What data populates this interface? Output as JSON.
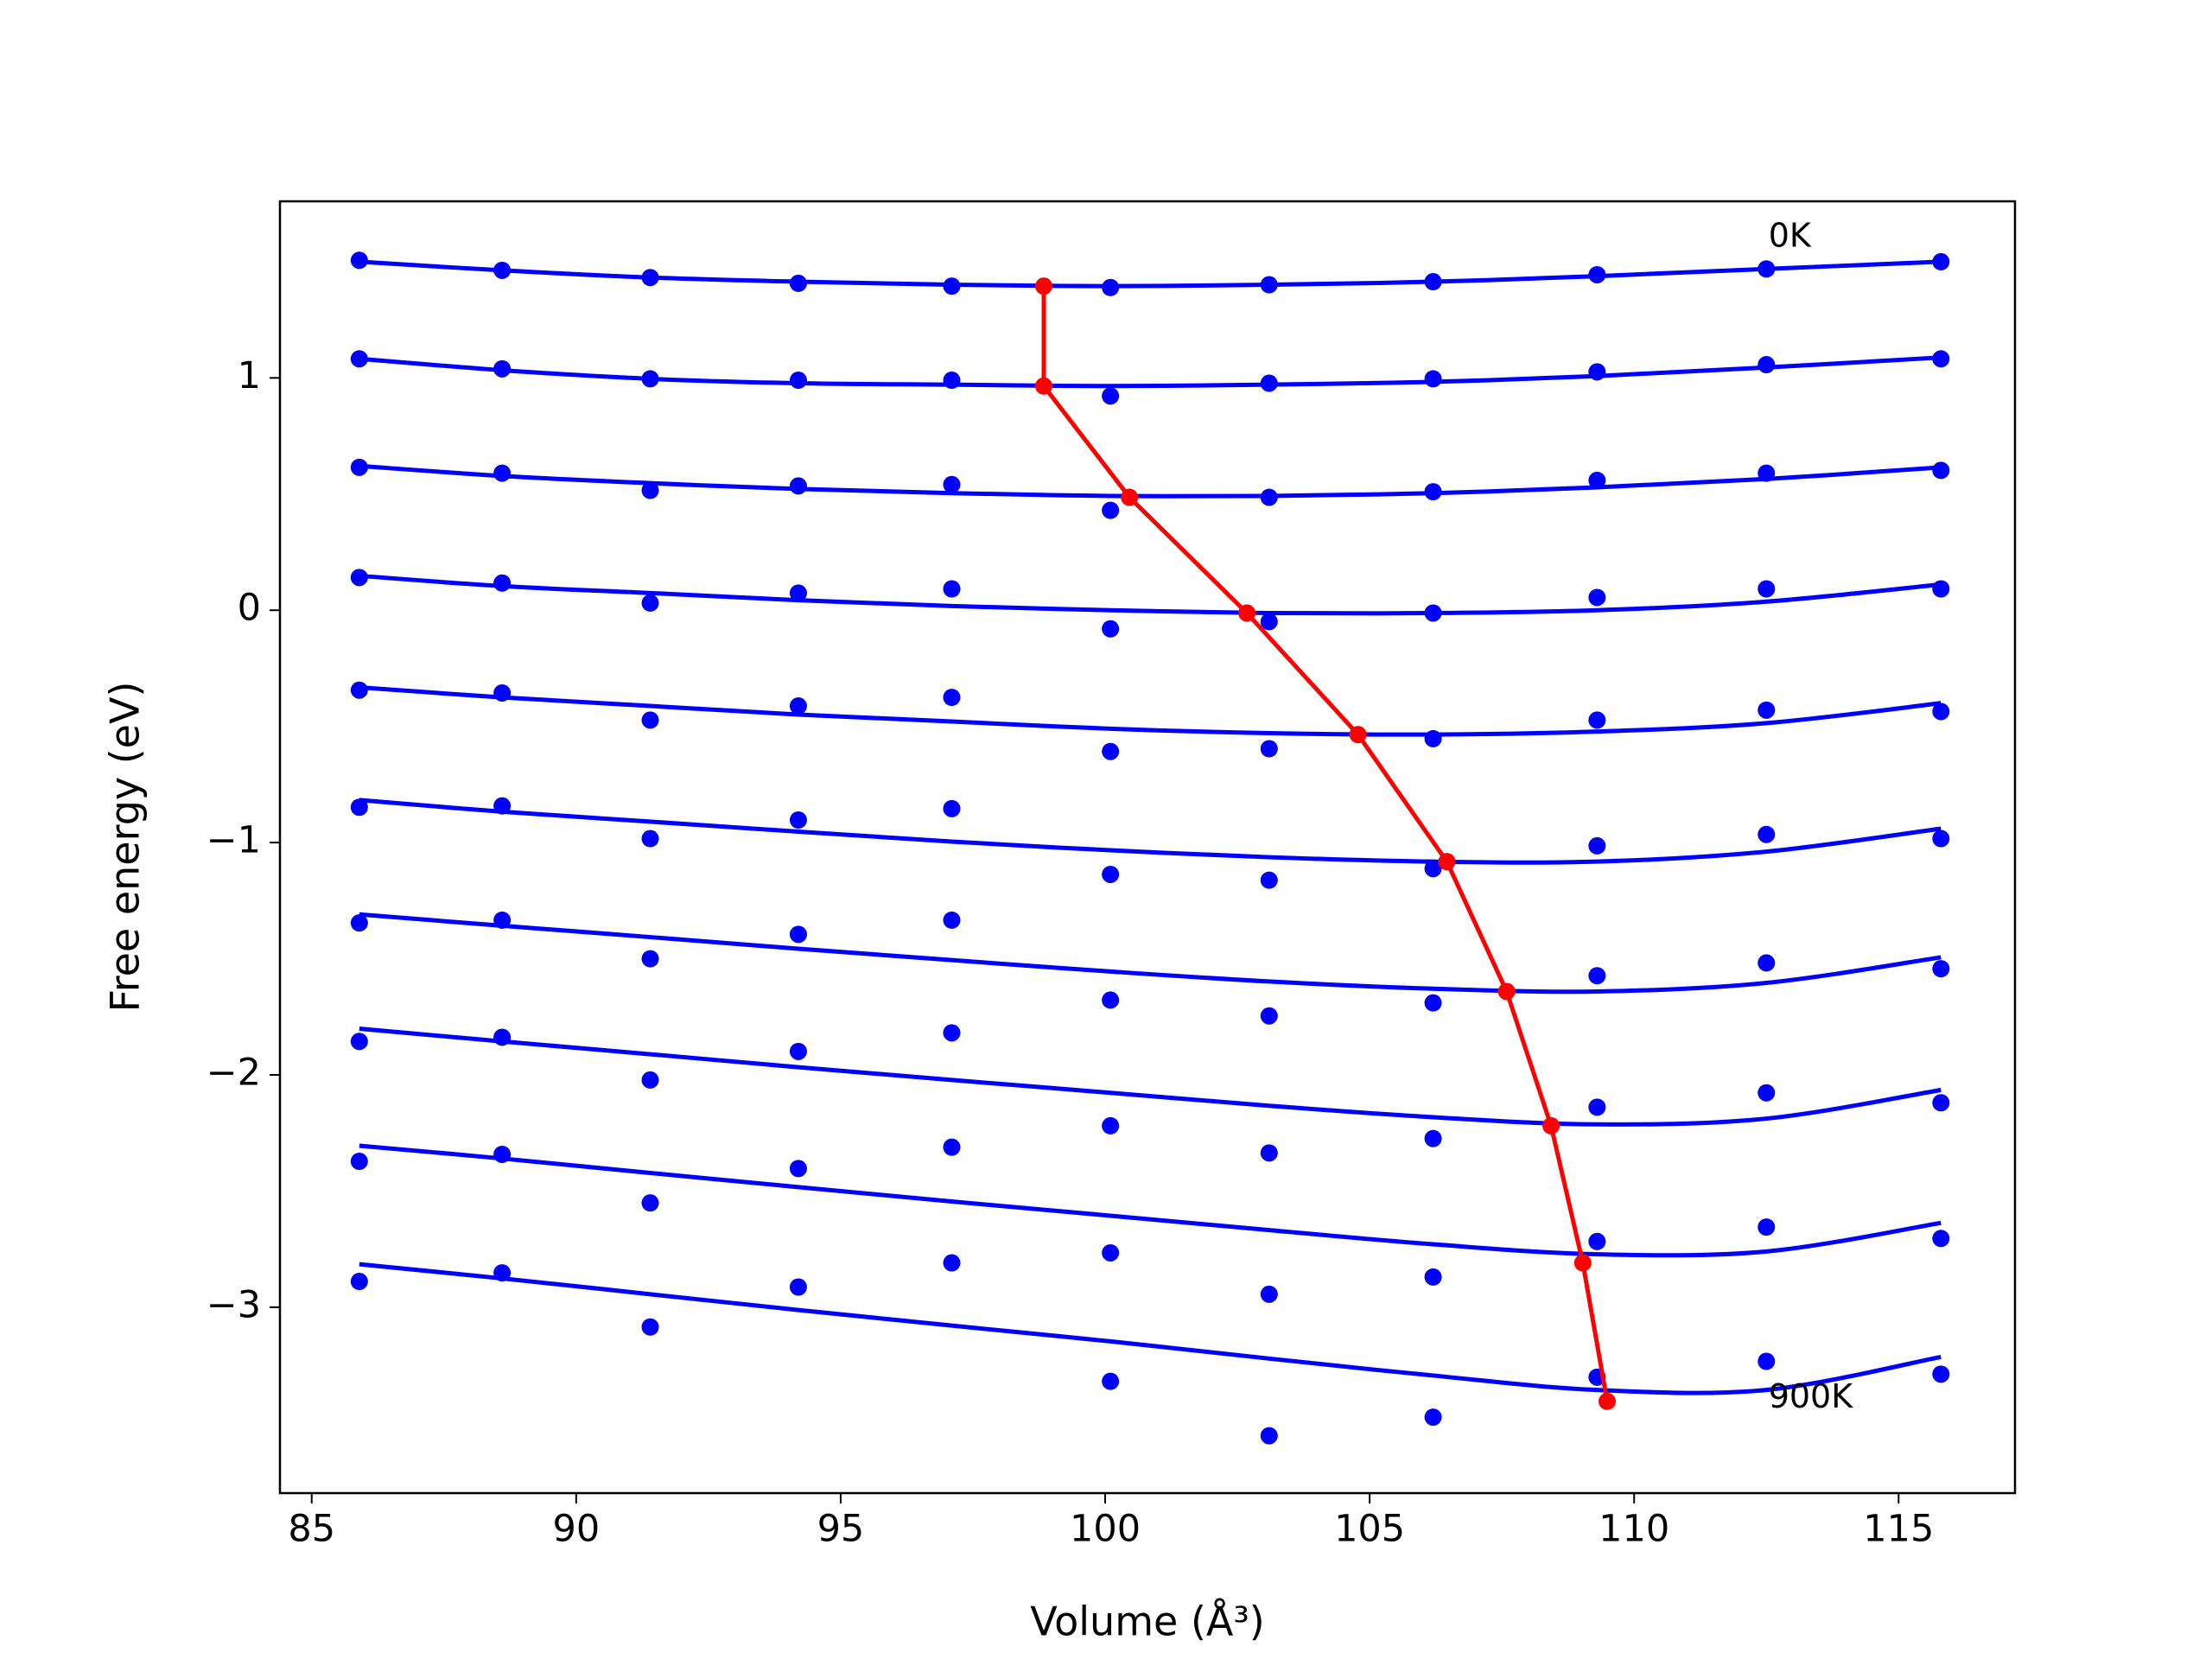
{
  "chart_data": {
    "type": "scatter",
    "x_label": "Volume (Å³)",
    "y_label": "Free energy (eV)",
    "xlim": [
      84.4,
      117.2
    ],
    "ylim": [
      -3.8,
      1.76
    ],
    "xticks": [
      85,
      90,
      95,
      100,
      105,
      110,
      115
    ],
    "yticks": [
      {
        "value": -3,
        "label": "−3"
      },
      {
        "value": -2,
        "label": "−2"
      },
      {
        "value": -1,
        "label": "−1"
      },
      0,
      1
    ],
    "x": [
      85.9,
      88.6,
      91.4,
      94.2,
      97.1,
      100.1,
      103.1,
      106.2,
      109.3,
      112.5,
      115.8
    ],
    "series": [
      {
        "color": "#0000ff",
        "values": [
          1.506,
          1.463,
          1.432,
          1.407,
          1.395,
          1.389,
          1.401,
          1.414,
          1.444,
          1.469,
          1.5
        ]
      },
      {
        "color": "#0000ff",
        "values": [
          1.082,
          1.039,
          0.996,
          0.99,
          0.99,
          0.922,
          0.977,
          0.996,
          1.026,
          1.057,
          1.082
        ]
      },
      {
        "color": "#0000ff",
        "values": [
          0.615,
          0.59,
          0.516,
          0.535,
          0.541,
          0.43,
          0.486,
          0.51,
          0.559,
          0.59,
          0.602
        ]
      },
      {
        "color": "#0000ff",
        "values": [
          0.141,
          0.117,
          0.031,
          0.074,
          0.092,
          -0.08,
          -0.049,
          -0.012,
          0.055,
          0.092,
          0.092
        ]
      },
      {
        "color": "#0000ff",
        "values": [
          -0.344,
          -0.356,
          -0.473,
          -0.412,
          -0.375,
          -0.608,
          -0.596,
          -0.553,
          -0.473,
          -0.43,
          -0.436
        ]
      },
      {
        "color": "#0000ff",
        "values": [
          -0.848,
          -0.842,
          -0.983,
          -0.903,
          -0.854,
          -1.137,
          -1.162,
          -1.112,
          -1.014,
          -0.965,
          -0.983
        ]
      },
      {
        "color": "#0000ff",
        "values": [
          -1.346,
          -1.334,
          -1.5,
          -1.395,
          -1.334,
          -1.678,
          -1.746,
          -1.69,
          -1.573,
          -1.518,
          -1.543
        ]
      },
      {
        "color": "#0000ff",
        "values": [
          -1.856,
          -1.838,
          -2.022,
          -1.899,
          -1.819,
          -2.219,
          -2.336,
          -2.274,
          -2.139,
          -2.077,
          -2.12
        ]
      },
      {
        "color": "#0000ff",
        "values": [
          -2.372,
          -2.342,
          -2.551,
          -2.403,
          -2.311,
          -2.766,
          -2.944,
          -2.87,
          -2.717,
          -2.655,
          -2.704
        ]
      },
      {
        "color": "#0000ff",
        "values": [
          -2.889,
          -2.852,
          -3.085,
          -2.913,
          -2.809,
          -3.319,
          -3.553,
          -3.473,
          -3.301,
          -3.233,
          -3.288
        ]
      }
    ],
    "fit_color": "#0000ff",
    "fits": [
      {
        "values": [
          1.5,
          1.463,
          1.432,
          1.414,
          1.401,
          1.395,
          1.401,
          1.414,
          1.438,
          1.469,
          1.5
        ]
      },
      {
        "values": [
          1.082,
          1.033,
          0.996,
          0.977,
          0.971,
          0.965,
          0.971,
          0.983,
          1.008,
          1.045,
          1.088
        ]
      },
      {
        "values": [
          0.621,
          0.578,
          0.547,
          0.522,
          0.504,
          0.492,
          0.492,
          0.504,
          0.529,
          0.565,
          0.615
        ]
      },
      {
        "values": [
          0.148,
          0.104,
          0.074,
          0.043,
          0.018,
          0.0,
          -0.012,
          -0.012,
          0.0,
          0.037,
          0.111
        ]
      },
      {
        "values": [
          -0.332,
          -0.375,
          -0.412,
          -0.449,
          -0.479,
          -0.51,
          -0.529,
          -0.535,
          -0.522,
          -0.486,
          -0.4
        ]
      },
      {
        "values": [
          -0.817,
          -0.867,
          -0.91,
          -0.953,
          -0.996,
          -1.033,
          -1.063,
          -1.082,
          -1.082,
          -1.039,
          -0.94
        ]
      },
      {
        "values": [
          -1.309,
          -1.358,
          -1.407,
          -1.457,
          -1.506,
          -1.555,
          -1.598,
          -1.629,
          -1.641,
          -1.604,
          -1.494
        ]
      },
      {
        "values": [
          -1.801,
          -1.856,
          -1.911,
          -1.967,
          -2.022,
          -2.077,
          -2.133,
          -2.182,
          -2.213,
          -2.188,
          -2.065
        ]
      },
      {
        "values": [
          -2.305,
          -2.36,
          -2.422,
          -2.483,
          -2.545,
          -2.606,
          -2.668,
          -2.729,
          -2.772,
          -2.76,
          -2.637
        ]
      },
      {
        "values": [
          -2.815,
          -2.876,
          -2.944,
          -3.012,
          -3.079,
          -3.147,
          -3.221,
          -3.294,
          -3.356,
          -3.356,
          -3.214
        ]
      }
    ],
    "minima": {
      "color": "#ff0000",
      "x": [
        98.84,
        98.84,
        100.46,
        102.68,
        104.78,
        106.46,
        107.59,
        108.43,
        109.03,
        109.49
      ],
      "values": [
        1.395,
        0.965,
        0.486,
        -0.012,
        -0.535,
        -1.082,
        -1.641,
        -2.219,
        -2.809,
        -3.405
      ]
    },
    "annotations": [
      {
        "text": "0K",
        "x": 112.54,
        "y": 1.604
      },
      {
        "text": "900K",
        "x": 112.54,
        "y": -3.393
      }
    ]
  }
}
